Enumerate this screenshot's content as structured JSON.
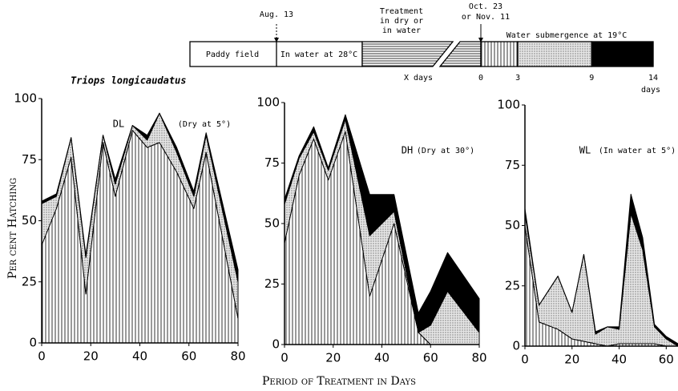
{
  "title": "Triops longicaudatus",
  "y_label": "Per cent Hatching",
  "x_label": "Period of Treatment in Days",
  "diagram": {
    "aug_label": "Aug. 13",
    "treatment_label": [
      "Treatment",
      "in dry or",
      "in water"
    ],
    "oct_label": [
      "Oct. 23",
      "or Nov. 11"
    ],
    "paddy": "Paddy field",
    "in_water": "In water at 28°C",
    "x_days": "X days",
    "submergence": "Water submergence at 19°C",
    "scale": [
      0,
      3,
      9,
      14
    ],
    "days": "days"
  },
  "chart_data": [
    {
      "type": "area",
      "stacked": true,
      "title": "DL",
      "subtitle": "(Dry at 5°)",
      "x": [
        0,
        6,
        12,
        18,
        25,
        30,
        37,
        43,
        48,
        55,
        62,
        67,
        80
      ],
      "series": [
        {
          "pattern": "vertical-hatch",
          "color": "#000",
          "values": [
            40,
            55,
            76,
            20,
            82,
            60,
            87,
            80,
            82,
            70,
            55,
            78,
            10
          ]
        },
        {
          "pattern": "stipple",
          "color": "#000",
          "values": [
            17,
            5,
            8,
            15,
            3,
            5,
            2,
            3,
            12,
            8,
            5,
            7,
            15
          ]
        },
        {
          "pattern": "solid",
          "color": "#000",
          "values": [
            1,
            1,
            0,
            1,
            0,
            2,
            0,
            2,
            0,
            2,
            2,
            1,
            5
          ]
        }
      ],
      "xlim": [
        0,
        80
      ],
      "xticks": [
        0,
        20,
        40,
        60,
        80
      ],
      "ylim": [
        0,
        100
      ],
      "yticks": [
        0,
        25,
        50,
        75,
        100
      ]
    },
    {
      "type": "area",
      "stacked": true,
      "title": "DH",
      "subtitle": "(Dry at 30°)",
      "x": [
        0,
        6,
        12,
        18,
        25,
        35,
        45,
        55,
        60,
        67,
        80
      ],
      "series": [
        {
          "pattern": "vertical-hatch",
          "color": "#000",
          "values": [
            42,
            70,
            85,
            68,
            88,
            20,
            50,
            5,
            0,
            0,
            0
          ]
        },
        {
          "pattern": "stipple",
          "color": "#000",
          "values": [
            16,
            7,
            3,
            4,
            5,
            25,
            5,
            0,
            8,
            22,
            5
          ]
        },
        {
          "pattern": "solid",
          "color": "#000",
          "values": [
            2,
            1,
            2,
            1,
            2,
            17,
            7,
            8,
            14,
            16,
            14
          ]
        }
      ],
      "xlim": [
        0,
        80
      ],
      "xticks": [
        0,
        20,
        40,
        60,
        80
      ],
      "ylim": [
        0,
        100
      ],
      "yticks": [
        0,
        25,
        50,
        75,
        100
      ]
    },
    {
      "type": "area",
      "stacked": true,
      "title": "WL",
      "subtitle": "(In water at 5°)",
      "x": [
        0,
        6,
        14,
        20,
        25,
        30,
        35,
        40,
        45,
        50,
        55,
        60,
        65
      ],
      "series": [
        {
          "pattern": "vertical-hatch",
          "color": "#000",
          "values": [
            50,
            10,
            7,
            3,
            2,
            1,
            0,
            1,
            1,
            1,
            1,
            0,
            0
          ]
        },
        {
          "pattern": "stipple",
          "color": "#000",
          "values": [
            5,
            7,
            22,
            11,
            36,
            4,
            8,
            6,
            54,
            39,
            7,
            3,
            0
          ]
        },
        {
          "pattern": "solid",
          "color": "#000",
          "values": [
            2,
            0,
            0,
            0,
            0,
            1,
            0,
            1,
            8,
            5,
            1,
            1,
            1
          ]
        }
      ],
      "xlim": [
        0,
        65
      ],
      "xticks": [
        0,
        20,
        40,
        60
      ],
      "ylim": [
        0,
        100
      ],
      "yticks": [
        0,
        25,
        50,
        75,
        100
      ]
    }
  ]
}
